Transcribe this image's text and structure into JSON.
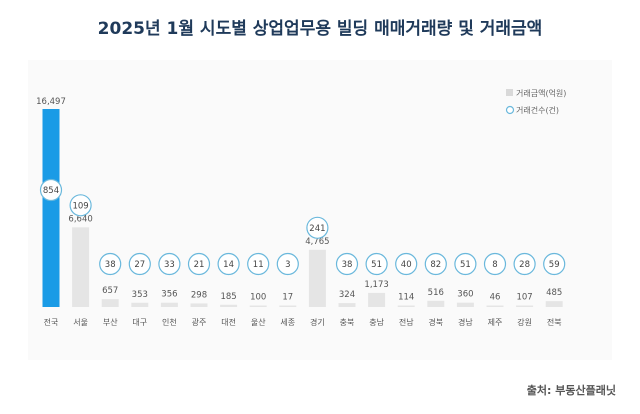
{
  "title": "2025년 1월 시도별 상업업무용 빌딩 매매거래량 및 거래금액",
  "source": "출처: 부동산플래닛",
  "chart_data": {
    "type": "bar",
    "categories": [
      "전국",
      "서울",
      "부산",
      "대구",
      "인천",
      "광주",
      "대전",
      "울산",
      "세종",
      "경기",
      "충북",
      "충남",
      "전남",
      "경북",
      "경남",
      "제주",
      "강원",
      "전북"
    ],
    "series": [
      {
        "name": "거래금액(억원)",
        "values": [
          16497,
          6640,
          657,
          353,
          356,
          298,
          185,
          100,
          17,
          4765,
          324,
          1173,
          114,
          516,
          360,
          46,
          107,
          485
        ]
      },
      {
        "name": "거래건수(건)",
        "values": [
          854,
          109,
          38,
          27,
          33,
          21,
          14,
          11,
          3,
          241,
          38,
          51,
          40,
          82,
          51,
          8,
          28,
          59
        ]
      }
    ],
    "value_labels": [
      "16,497",
      "6,640",
      "657",
      "353",
      "356",
      "298",
      "185",
      "100",
      "17",
      "4,765",
      "324",
      "1,173",
      "114",
      "516",
      "360",
      "46",
      "107",
      "485"
    ],
    "count_labels": [
      "854",
      "109",
      "38",
      "27",
      "33",
      "21",
      "14",
      "11",
      "3",
      "241",
      "38",
      "51",
      "40",
      "82",
      "51",
      "8",
      "28",
      "59"
    ],
    "legend_position": "top-right",
    "colors": {
      "highlight": "#1a9be6",
      "bar": "#e5e5e5",
      "circle_stroke": "#6ab8dc",
      "title": "#1f3a5a"
    }
  }
}
